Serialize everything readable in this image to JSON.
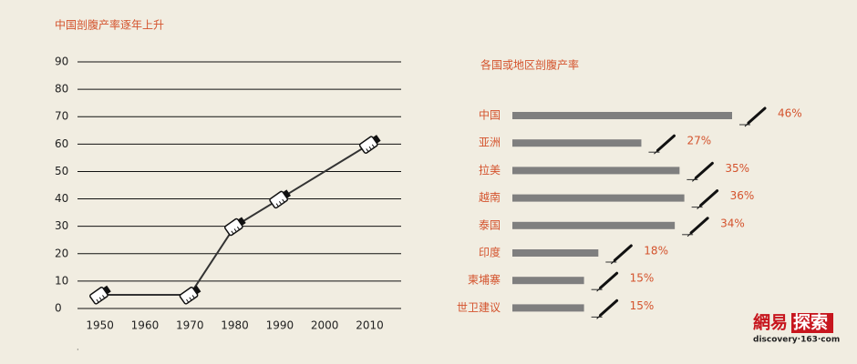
{
  "chart_data": [
    {
      "type": "line",
      "title": "中国剖腹产率逐年上升",
      "x": [
        1950,
        1970,
        1980,
        1990,
        2010
      ],
      "values": [
        5,
        5,
        30,
        40,
        60
      ],
      "color": "#333333",
      "xlim": [
        1945,
        2017
      ],
      "xticks": [
        1950,
        1960,
        1970,
        1980,
        1990,
        2000,
        2010
      ],
      "ylim": [
        0,
        90
      ],
      "yticks": [
        0,
        10,
        20,
        30,
        40,
        50,
        60,
        70,
        80,
        90
      ],
      "grid": true
    },
    {
      "type": "hbar",
      "title": "各国或地区剖腹产率",
      "categories": [
        "中国",
        "亚洲",
        "拉美",
        "越南",
        "泰国",
        "印度",
        "柬埔寨",
        "世卫建议"
      ],
      "values": [
        46,
        27,
        35,
        36,
        34,
        18,
        15,
        15
      ],
      "value_labels": [
        "46%",
        "27%",
        "35%",
        "36%",
        "34%",
        "18%",
        "15%",
        "15%"
      ],
      "color": "#7f7f7f"
    }
  ],
  "logo": {
    "brand": "網易",
    "section": "探索",
    "url": "discovery·163·com"
  }
}
